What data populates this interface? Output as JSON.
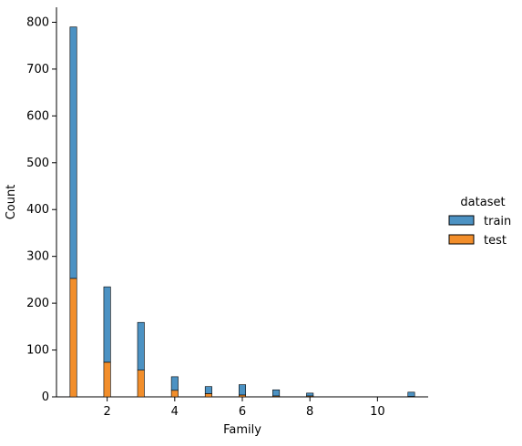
{
  "chart_data": {
    "type": "bar",
    "stacked": true,
    "xlabel": "Family",
    "ylabel": "Count",
    "xlim": [
      0.5,
      11.5
    ],
    "ylim": [
      0,
      832
    ],
    "x_ticks": [
      2,
      4,
      6,
      8,
      10
    ],
    "y_ticks": [
      0,
      100,
      200,
      300,
      400,
      500,
      600,
      700,
      800
    ],
    "bin_width": 0.2,
    "grid": false,
    "legend": {
      "title": "dataset",
      "placement": "right"
    },
    "x": [
      1,
      2,
      3,
      4,
      5,
      6,
      7,
      8,
      11
    ],
    "series": [
      {
        "name": "test",
        "color": "#f28e2b",
        "values": [
          253,
          74,
          57,
          14,
          7,
          4,
          2,
          2,
          1
        ]
      },
      {
        "name": "train",
        "color": "#4c92c3",
        "values": [
          537,
          161,
          102,
          29,
          15,
          22,
          13,
          6,
          9
        ]
      }
    ]
  }
}
